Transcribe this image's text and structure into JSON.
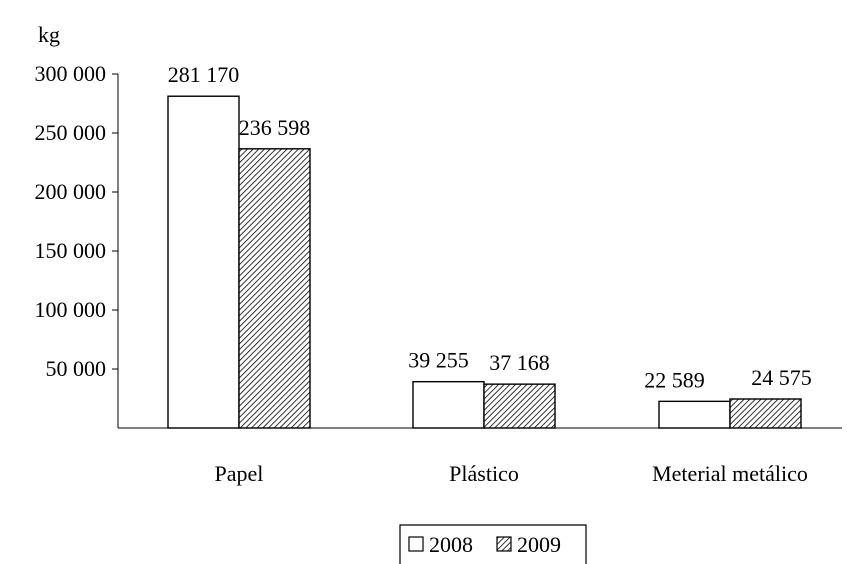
{
  "chart_data": {
    "type": "bar",
    "ylabel": "kg",
    "categories": [
      "Papel",
      "Plástico",
      "Meterial metálico"
    ],
    "series": [
      {
        "name": "2008",
        "values": [
          281170,
          39255,
          22589
        ],
        "labels": [
          "281 170",
          "39 255",
          "22 589"
        ],
        "fill": "none"
      },
      {
        "name": "2009",
        "values": [
          236598,
          37168,
          24575
        ],
        "labels": [
          "236 598",
          "37 168",
          "24 575"
        ],
        "fill": "hatched"
      }
    ],
    "ylim": [
      0,
      300000
    ],
    "yticks": [
      {
        "value": 50000,
        "label": "50 000"
      },
      {
        "value": 100000,
        "label": "100 000"
      },
      {
        "value": 150000,
        "label": "150 000"
      },
      {
        "value": 200000,
        "label": "200 000"
      },
      {
        "value": 250000,
        "label": "250 000"
      },
      {
        "value": 300000,
        "label": "300 000"
      }
    ],
    "grid": false,
    "legend_position": "bottom-center"
  }
}
